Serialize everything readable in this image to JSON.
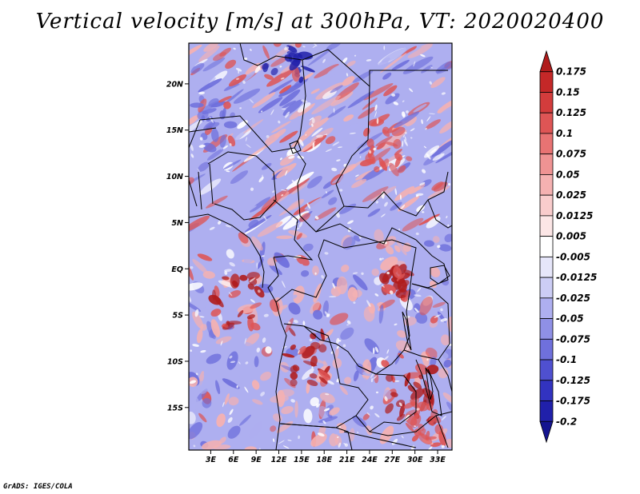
{
  "title": "Vertical velocity [m/s] at 300hPa, VT: 2020020400",
  "credit": "GrADS: IGES/COLA",
  "map": {
    "lat_labels": [
      "20N",
      "15N",
      "10N",
      "5N",
      "EQ",
      "5S",
      "10S",
      "15S"
    ],
    "lat_values": [
      20,
      15,
      10,
      5,
      0,
      -5,
      -10,
      -15
    ],
    "lon_labels": [
      "3E",
      "6E",
      "9E",
      "12E",
      "15E",
      "18E",
      "21E",
      "24E",
      "27E",
      "30E",
      "33E"
    ],
    "lon_values": [
      3,
      6,
      9,
      12,
      15,
      18,
      21,
      24,
      27,
      30,
      33
    ],
    "lat_range": [
      -19.6,
      24.4
    ],
    "lon_range": [
      0.1,
      34.9
    ]
  },
  "colorbar": {
    "levels": [
      "0.175",
      "0.15",
      "0.125",
      "0.1",
      "0.075",
      "0.05",
      "0.025",
      "0.0125",
      "0.005",
      "-0.005",
      "-0.0125",
      "-0.025",
      "-0.05",
      "-0.075",
      "-0.1",
      "-0.125",
      "-0.175",
      "-0.2"
    ],
    "colors": [
      "#b01c1c",
      "#c42828",
      "#d33c3c",
      "#de5555",
      "#e87373",
      "#ef9393",
      "#f5b1b1",
      "#f9cccc",
      "#fce6e6",
      "#ffffff",
      "#e6e6fa",
      "#cccdf5",
      "#aeaff0",
      "#8f90e6",
      "#6f70dc",
      "#4f50d0",
      "#3233c0",
      "#2020aa",
      "#141490"
    ]
  },
  "field_colors": {
    "strong_down": "#2020aa",
    "down": "#6f70dc",
    "weak_down": "#aeaff0",
    "neutral": "#ffffff",
    "weak_up": "#f5b1b1",
    "up": "#de5555",
    "strong_up": "#b01c1c"
  }
}
